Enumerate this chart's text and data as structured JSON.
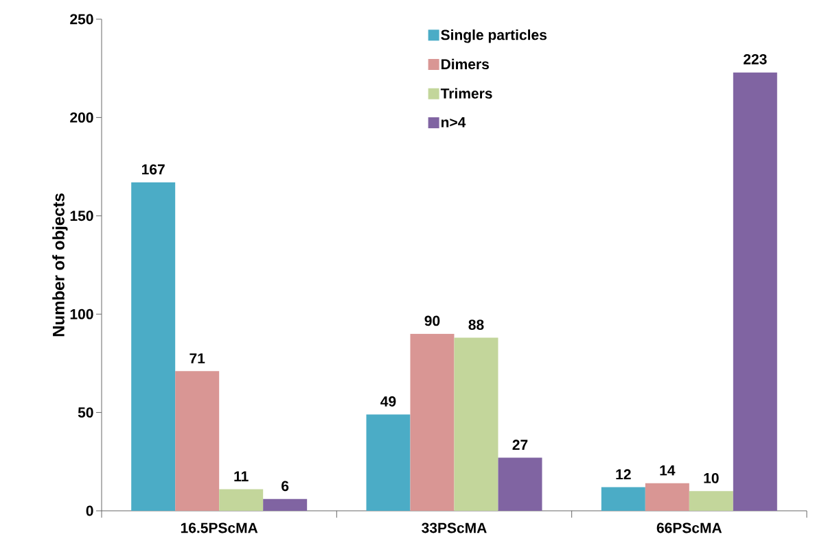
{
  "chart_data": {
    "type": "bar",
    "ylabel": "Number of objects",
    "categories": [
      "16.5PScMA",
      "33PScMA",
      "66PScMA"
    ],
    "series": [
      {
        "name": "Single particles",
        "color": "#4bacc6",
        "values": [
          167,
          49,
          12
        ]
      },
      {
        "name": "Dimers",
        "color": "#d99694",
        "values": [
          71,
          90,
          14
        ]
      },
      {
        "name": "Trimers",
        "color": "#c3d69b",
        "values": [
          11,
          88,
          10
        ]
      },
      {
        "name": "n>4",
        "color": "#8064a2",
        "values": [
          6,
          27,
          223
        ]
      }
    ],
    "ylim": [
      0,
      250
    ],
    "yticks": [
      0,
      50,
      100,
      150,
      200,
      250
    ],
    "grid": false,
    "legend": "top right",
    "data_labels": true
  }
}
